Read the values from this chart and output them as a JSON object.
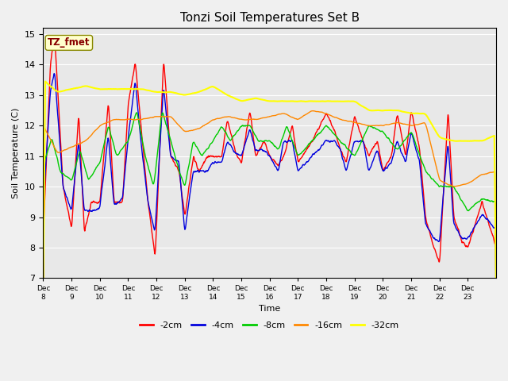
{
  "title": "Tonzi Soil Temperatures Set B",
  "xlabel": "Time",
  "ylabel": "Soil Temperature (C)",
  "ylim": [
    7.0,
    15.2
  ],
  "yticks": [
    7.0,
    8.0,
    9.0,
    10.0,
    11.0,
    12.0,
    13.0,
    14.0,
    15.0
  ],
  "xtick_labels": [
    "Dec 8",
    "Dec 9",
    "Dec 10",
    "Dec 11",
    "Dec 12",
    "Dec 13",
    "Dec 14",
    "Dec 15",
    "Dec 16",
    "Dec 17",
    "Dec 18",
    "Dec 19",
    "Dec 20",
    "Dec 21",
    "Dec 22",
    "Dec 23"
  ],
  "annotation_text": "TZ_fmet",
  "bg_color": "#e8e8e8",
  "fig_bg": "#f0f0f0",
  "line_colors": {
    "-2cm": "#ff0000",
    "-4cm": "#0000dd",
    "-8cm": "#00cc00",
    "-16cm": "#ff8800",
    "-32cm": "#ffff00"
  },
  "legend_labels": [
    "-2cm",
    "-4cm",
    "-8cm",
    "-16cm",
    "-32cm"
  ]
}
